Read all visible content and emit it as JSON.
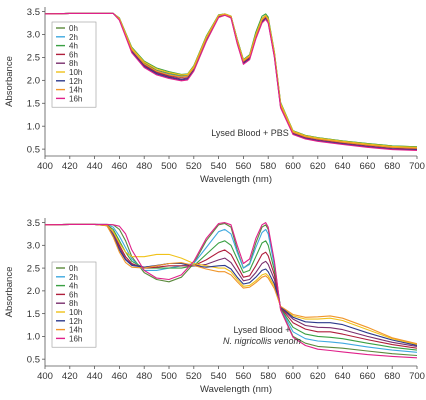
{
  "colors": {
    "0h": "#5a8a3c",
    "2h": "#3fa9e0",
    "4h": "#3aa043",
    "6h": "#b01e3c",
    "8h": "#7a2f6e",
    "10h": "#f0c21a",
    "12h": "#2d3a8c",
    "14h": "#f0962a",
    "16h": "#e0208a"
  },
  "chart_data": [
    {
      "type": "line",
      "xlabel": "Wavelength (nm)",
      "ylabel": "Absorbance",
      "xlim": [
        400,
        700
      ],
      "ylim": [
        0.35,
        3.6
      ],
      "xticks": [
        "400",
        "420",
        "440",
        "460",
        "480",
        "500",
        "520",
        "540",
        "560",
        "580",
        "600",
        "620",
        "640",
        "660",
        "680",
        "700"
      ],
      "yticks": [
        "0.5",
        "1.0",
        "1.5",
        "2.0",
        "2.5",
        "3.0",
        "3.5"
      ],
      "annotation_lines": [
        "Lysed Blood + PBS"
      ],
      "legend_position": "left",
      "grid": false,
      "x": [
        400,
        420,
        440,
        455,
        460,
        470,
        480,
        490,
        500,
        510,
        515,
        520,
        530,
        540,
        545,
        550,
        555,
        560,
        565,
        570,
        575,
        578,
        580,
        585,
        590,
        600,
        610,
        620,
        640,
        660,
        680,
        700
      ],
      "series": [
        {
          "name": "0h",
          "values": [
            3.45,
            3.46,
            3.46,
            3.46,
            3.35,
            2.7,
            2.38,
            2.22,
            2.15,
            2.1,
            2.12,
            2.3,
            2.95,
            3.42,
            3.45,
            3.4,
            2.9,
            2.45,
            2.55,
            3.0,
            3.35,
            3.42,
            3.35,
            2.6,
            1.5,
            0.9,
            0.8,
            0.75,
            0.68,
            0.62,
            0.57,
            0.55
          ]
        },
        {
          "name": "2h",
          "values": [
            3.45,
            3.46,
            3.46,
            3.46,
            3.35,
            2.68,
            2.36,
            2.2,
            2.13,
            2.08,
            2.1,
            2.28,
            2.93,
            3.42,
            3.45,
            3.4,
            2.88,
            2.43,
            2.52,
            2.98,
            3.33,
            3.4,
            3.32,
            2.58,
            1.48,
            0.88,
            0.78,
            0.73,
            0.66,
            0.6,
            0.55,
            0.53
          ]
        },
        {
          "name": "4h",
          "values": [
            3.45,
            3.46,
            3.46,
            3.46,
            3.36,
            2.72,
            2.42,
            2.27,
            2.19,
            2.13,
            2.14,
            2.32,
            2.96,
            3.43,
            3.45,
            3.4,
            2.9,
            2.45,
            2.56,
            3.05,
            3.4,
            3.45,
            3.38,
            2.62,
            1.52,
            0.9,
            0.8,
            0.75,
            0.68,
            0.62,
            0.57,
            0.55
          ]
        },
        {
          "name": "6h",
          "values": [
            3.45,
            3.46,
            3.46,
            3.46,
            3.34,
            2.66,
            2.34,
            2.18,
            2.1,
            2.06,
            2.08,
            2.26,
            2.9,
            3.4,
            3.44,
            3.39,
            2.85,
            2.4,
            2.5,
            2.95,
            3.3,
            3.38,
            3.3,
            2.55,
            1.45,
            0.86,
            0.76,
            0.71,
            0.64,
            0.58,
            0.53,
            0.51
          ]
        },
        {
          "name": "8h",
          "values": [
            3.45,
            3.46,
            3.46,
            3.46,
            3.33,
            2.64,
            2.32,
            2.16,
            2.08,
            2.03,
            2.05,
            2.24,
            2.88,
            3.39,
            3.44,
            3.38,
            2.83,
            2.38,
            2.48,
            2.93,
            3.28,
            3.36,
            3.28,
            2.53,
            1.43,
            0.84,
            0.74,
            0.69,
            0.62,
            0.56,
            0.51,
            0.49
          ]
        },
        {
          "name": "10h",
          "values": [
            3.45,
            3.46,
            3.46,
            3.46,
            3.35,
            2.7,
            2.4,
            2.25,
            2.17,
            2.12,
            2.13,
            2.3,
            2.94,
            3.42,
            3.45,
            3.4,
            2.88,
            2.44,
            2.54,
            3.0,
            3.35,
            3.42,
            3.34,
            2.6,
            1.5,
            0.89,
            0.79,
            0.74,
            0.67,
            0.61,
            0.56,
            0.54
          ]
        },
        {
          "name": "12h",
          "values": [
            3.45,
            3.46,
            3.46,
            3.46,
            3.32,
            2.62,
            2.3,
            2.14,
            2.06,
            2.01,
            2.03,
            2.22,
            2.86,
            3.38,
            3.43,
            3.37,
            2.82,
            2.37,
            2.47,
            2.92,
            3.27,
            3.35,
            3.27,
            2.52,
            1.42,
            0.83,
            0.73,
            0.68,
            0.61,
            0.55,
            0.5,
            0.48
          ]
        },
        {
          "name": "14h",
          "values": [
            3.45,
            3.46,
            3.46,
            3.46,
            3.34,
            2.67,
            2.36,
            2.2,
            2.12,
            2.07,
            2.09,
            2.27,
            2.91,
            3.41,
            3.44,
            3.39,
            2.86,
            2.42,
            2.52,
            2.97,
            3.32,
            3.4,
            3.31,
            2.56,
            1.46,
            0.87,
            0.77,
            0.72,
            0.65,
            0.59,
            0.54,
            0.52
          ]
        },
        {
          "name": "16h",
          "values": [
            3.45,
            3.46,
            3.46,
            3.46,
            3.31,
            2.6,
            2.28,
            2.12,
            2.04,
            1.99,
            2.01,
            2.2,
            2.84,
            3.37,
            3.42,
            3.36,
            2.8,
            2.35,
            2.45,
            2.9,
            3.25,
            3.33,
            3.25,
            2.5,
            1.4,
            0.82,
            0.72,
            0.67,
            0.6,
            0.54,
            0.49,
            0.47
          ]
        }
      ]
    },
    {
      "type": "line",
      "xlabel": "Wavelength (nm)",
      "ylabel": "Absorbance",
      "xlim": [
        400,
        700
      ],
      "ylim": [
        0.35,
        3.6
      ],
      "xticks": [
        "400",
        "420",
        "440",
        "460",
        "480",
        "500",
        "520",
        "540",
        "560",
        "580",
        "600",
        "620",
        "640",
        "660",
        "680",
        "700"
      ],
      "yticks": [
        "0.5",
        "1.0",
        "1.5",
        "2.0",
        "2.5",
        "3.0",
        "3.5"
      ],
      "annotation_lines": [
        "Lysed Blood +",
        "N. nigricollis venom"
      ],
      "legend_position": "left",
      "grid": false,
      "x": [
        400,
        420,
        440,
        450,
        455,
        460,
        465,
        470,
        480,
        490,
        500,
        510,
        520,
        530,
        540,
        545,
        550,
        555,
        560,
        565,
        570,
        575,
        578,
        580,
        585,
        590,
        600,
        610,
        620,
        630,
        640,
        660,
        680,
        700
      ],
      "series": [
        {
          "name": "0h",
          "values": [
            3.45,
            3.46,
            3.46,
            3.46,
            3.45,
            3.35,
            3.1,
            2.75,
            2.4,
            2.25,
            2.2,
            2.3,
            2.6,
            3.1,
            3.45,
            3.48,
            3.4,
            2.9,
            2.5,
            2.6,
            3.05,
            3.4,
            3.45,
            3.35,
            2.6,
            1.6,
            1.0,
            0.85,
            0.78,
            0.76,
            0.74,
            0.68,
            0.62,
            0.58
          ]
        },
        {
          "name": "2h",
          "values": [
            3.45,
            3.46,
            3.46,
            3.46,
            3.4,
            3.2,
            2.95,
            2.7,
            2.45,
            2.45,
            2.5,
            2.55,
            2.6,
            2.95,
            3.3,
            3.35,
            3.25,
            2.85,
            2.5,
            2.58,
            2.95,
            3.28,
            3.35,
            3.25,
            2.55,
            1.62,
            1.1,
            0.95,
            0.9,
            0.88,
            0.85,
            0.77,
            0.7,
            0.65
          ]
        },
        {
          "name": "4h",
          "values": [
            3.45,
            3.46,
            3.46,
            3.45,
            3.35,
            3.1,
            2.85,
            2.65,
            2.5,
            2.5,
            2.5,
            2.5,
            2.55,
            2.8,
            3.05,
            3.1,
            3.0,
            2.7,
            2.4,
            2.45,
            2.75,
            3.05,
            3.1,
            3.0,
            2.45,
            1.62,
            1.2,
            1.05,
            1.0,
            0.98,
            0.95,
            0.85,
            0.76,
            0.7
          ]
        },
        {
          "name": "6h",
          "values": [
            3.45,
            3.46,
            3.46,
            3.45,
            3.3,
            3.0,
            2.75,
            2.6,
            2.5,
            2.52,
            2.55,
            2.55,
            2.55,
            2.68,
            2.85,
            2.9,
            2.8,
            2.55,
            2.3,
            2.33,
            2.55,
            2.8,
            2.85,
            2.77,
            2.35,
            1.63,
            1.3,
            1.16,
            1.1,
            1.1,
            1.05,
            0.93,
            0.82,
            0.74
          ]
        },
        {
          "name": "8h",
          "values": [
            3.45,
            3.46,
            3.46,
            3.44,
            3.25,
            2.95,
            2.7,
            2.58,
            2.52,
            2.55,
            2.6,
            2.6,
            2.55,
            2.58,
            2.68,
            2.72,
            2.62,
            2.42,
            2.22,
            2.25,
            2.4,
            2.6,
            2.65,
            2.58,
            2.25,
            1.64,
            1.38,
            1.24,
            1.2,
            1.19,
            1.15,
            1.0,
            0.87,
            0.78
          ]
        },
        {
          "name": "10h",
          "values": [
            3.45,
            3.46,
            3.46,
            3.44,
            3.3,
            3.05,
            2.85,
            2.75,
            2.75,
            2.8,
            2.8,
            2.72,
            2.6,
            2.55,
            2.5,
            2.5,
            2.42,
            2.25,
            2.1,
            2.12,
            2.22,
            2.35,
            2.38,
            2.33,
            2.1,
            1.65,
            1.45,
            1.38,
            1.38,
            1.4,
            1.35,
            1.15,
            0.95,
            0.82
          ]
        },
        {
          "name": "12h",
          "values": [
            3.45,
            3.46,
            3.46,
            3.43,
            3.2,
            2.9,
            2.68,
            2.56,
            2.52,
            2.56,
            2.6,
            2.6,
            2.55,
            2.52,
            2.55,
            2.56,
            2.48,
            2.3,
            2.15,
            2.18,
            2.3,
            2.45,
            2.48,
            2.42,
            2.15,
            1.65,
            1.42,
            1.32,
            1.3,
            1.3,
            1.26,
            1.08,
            0.92,
            0.8
          ]
        },
        {
          "name": "14h",
          "values": [
            3.45,
            3.46,
            3.46,
            3.43,
            3.18,
            2.85,
            2.62,
            2.52,
            2.5,
            2.55,
            2.6,
            2.62,
            2.56,
            2.48,
            2.42,
            2.42,
            2.35,
            2.2,
            2.06,
            2.08,
            2.18,
            2.3,
            2.33,
            2.28,
            2.05,
            1.66,
            1.48,
            1.42,
            1.43,
            1.45,
            1.4,
            1.2,
            0.97,
            0.84
          ]
        },
        {
          "name": "16h",
          "values": [
            3.45,
            3.46,
            3.46,
            3.46,
            3.45,
            3.42,
            3.25,
            2.9,
            2.45,
            2.28,
            2.25,
            2.35,
            2.65,
            3.15,
            3.48,
            3.5,
            3.45,
            3.0,
            2.6,
            2.7,
            3.15,
            3.45,
            3.5,
            3.4,
            2.65,
            1.58,
            0.98,
            0.8,
            0.72,
            0.69,
            0.66,
            0.6,
            0.56,
            0.53
          ]
        }
      ]
    }
  ]
}
